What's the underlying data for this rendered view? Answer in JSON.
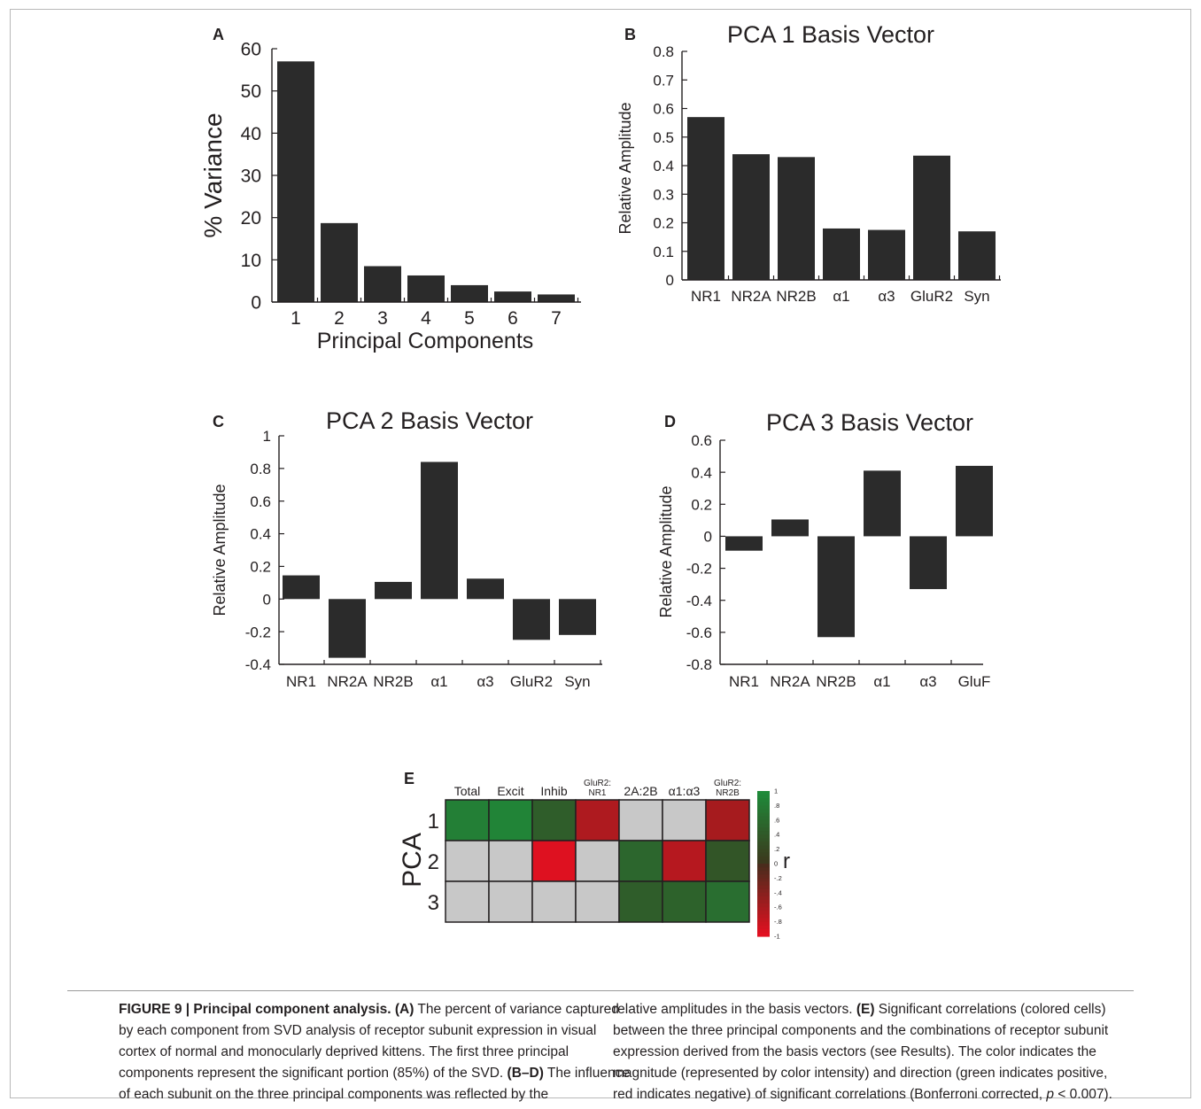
{
  "figure": {
    "caption_left": {
      "label": "FIGURE 9 | Principal component analysis.",
      "a_tag": "(A)",
      "a_text": " The percent of variance captured by each component from SVD analysis of receptor subunit expression in visual cortex of normal and monocularly deprived kittens. The first three principal components represent the significant portion (85%) of the SVD. ",
      "bd_tag": "(B–D)",
      "bd_text": " The influence of each subunit on the three principal components was reflected by the"
    },
    "caption_right": {
      "text1": "relative amplitudes in the basis vectors. ",
      "e_tag": "(E)",
      "text2": " Significant correlations (colored cells) between the three principal components and the combinations of receptor subunit expression derived from the basis vectors (see Results). The color indicates the magnitude (represented by color intensity) and direction (green indicates positive, red indicates negative) of significant correlations (Bonferroni corrected, ",
      "p_symbol": "p",
      "text3": " < 0.007)."
    },
    "colors": {
      "bar": "#2b2b2b",
      "grey_cell": "#c8c8c8",
      "positive": "#1f8c3a",
      "negative": "#cf1d26"
    }
  },
  "chart_data": [
    {
      "panel": "A",
      "type": "bar",
      "title": "",
      "xlabel": "Principal Components",
      "ylabel": "% Variance",
      "categories": [
        "1",
        "2",
        "3",
        "4",
        "5",
        "6",
        "7"
      ],
      "values": [
        57,
        18.7,
        8.5,
        6.3,
        4,
        2.5,
        1.8
      ],
      "ylim": [
        0,
        60
      ],
      "yticks": [
        0,
        10,
        20,
        30,
        40,
        50,
        60
      ],
      "ytick_labels": [
        "0",
        "10",
        "20",
        "30",
        "40",
        "50",
        "60"
      ]
    },
    {
      "panel": "B",
      "type": "bar",
      "title": "PCA 1 Basis Vector",
      "xlabel": "",
      "ylabel": "Relative Amplitude",
      "categories": [
        "NR1",
        "NR2A",
        "NR2B",
        "α1",
        "α3",
        "GluR2",
        "Syn"
      ],
      "values": [
        0.57,
        0.44,
        0.43,
        0.18,
        0.175,
        0.435,
        0.17
      ],
      "ylim": [
        0,
        0.8
      ],
      "yticks": [
        0,
        0.1,
        0.2,
        0.3,
        0.4,
        0.5,
        0.6,
        0.7,
        0.8
      ],
      "ytick_labels": [
        "0",
        "0.1",
        "0.2",
        "0.3",
        "0.4",
        "0.5",
        "0.6",
        "0.7",
        "0.8"
      ]
    },
    {
      "panel": "C",
      "type": "bar",
      "title": "PCA 2 Basis Vector",
      "xlabel": "",
      "ylabel": "Relative Amplitude",
      "categories": [
        "NR1",
        "NR2A",
        "NR2B",
        "α1",
        "α3",
        "GluR2",
        "Syn"
      ],
      "values": [
        0.145,
        -0.36,
        0.105,
        0.84,
        0.125,
        -0.25,
        -0.22
      ],
      "ylim": [
        -0.4,
        1
      ],
      "yticks": [
        -0.4,
        -0.2,
        0,
        0.2,
        0.4,
        0.6,
        0.8,
        1
      ],
      "ytick_labels": [
        "-0.4",
        "-0.2",
        "0",
        "0.2",
        "0.4",
        "0.6",
        "0.8",
        "1"
      ]
    },
    {
      "panel": "D",
      "type": "bar",
      "title": "PCA 3 Basis Vector",
      "xlabel": "",
      "ylabel": "Relative Amplitude",
      "categories": [
        "NR1",
        "NR2A",
        "NR2B",
        "α1",
        "α3",
        "GluF"
      ],
      "values": [
        -0.09,
        0.105,
        -0.63,
        0.41,
        -0.33,
        0.44
      ],
      "ylim": [
        -0.8,
        0.6
      ],
      "yticks": [
        -0.8,
        -0.6,
        -0.4,
        -0.2,
        0,
        0.2,
        0.4,
        0.6
      ],
      "ytick_labels": [
        "-0.8",
        "-0.6",
        "-0.4",
        "-0.2",
        "0",
        "0.2",
        "0.4",
        "0.6"
      ]
    },
    {
      "panel": "E",
      "type": "heatmap",
      "ylabel": "PCA",
      "colorbar_label": "r",
      "columns": [
        "Total",
        "Excit",
        "Inhib",
        "GluR2:\nNR1",
        "2A:2B",
        "α1:α3",
        "GluR2:\nNR2B"
      ],
      "rows": [
        "1",
        "2",
        "3"
      ],
      "values": [
        [
          0.85,
          0.9,
          0.45,
          -0.65,
          null,
          null,
          -0.6
        ],
        [
          null,
          null,
          -0.95,
          null,
          0.55,
          -0.7,
          0.35
        ],
        [
          null,
          null,
          null,
          null,
          0.45,
          0.5,
          0.65
        ]
      ],
      "colorbar_ticks": [
        1,
        0.8,
        0.6,
        0.4,
        0.2,
        0,
        -0.2,
        -0.4,
        -0.6,
        -0.8,
        -1
      ],
      "colorbar_tick_labels": [
        "1",
        ".8",
        ".6",
        ".4",
        ".2",
        "0",
        "-.2",
        "-.4",
        "-.6",
        "-.8",
        "-1"
      ]
    }
  ]
}
